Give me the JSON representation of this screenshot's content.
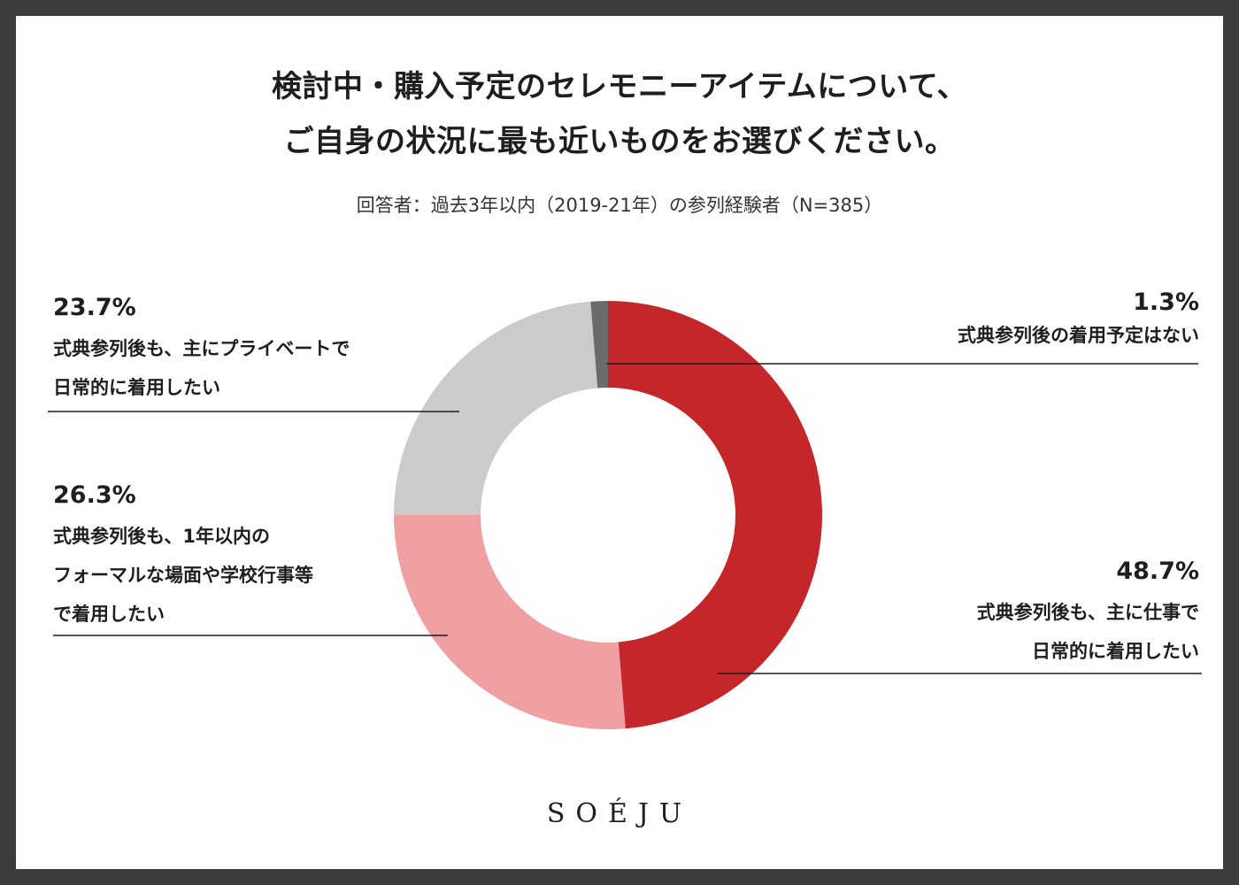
{
  "title": {
    "line1": "検討中・購入予定のセレモニーアイテムについて、",
    "line2": "ご自身の状況に最も近いものをお選びください。"
  },
  "subtitle": "回答者：過去3年以内（2019-21年）の参列経験者（N=385）",
  "brand": "SOÉJU",
  "colors": {
    "work": "#c4262a",
    "formal": "#f0a0a2",
    "private": "#cbcbcb",
    "none": "#6b6b6b",
    "leader": "#1e1e1e"
  },
  "chart_data": {
    "type": "pie",
    "donut": true,
    "unit": "%",
    "slices": [
      {
        "key": "work",
        "value": 48.7,
        "pct_label": "48.7%",
        "lines": [
          "式典参列後も、主に仕事で",
          "日常的に着用したい"
        ]
      },
      {
        "key": "formal",
        "value": 26.3,
        "pct_label": "26.3%",
        "lines": [
          "式典参列後も、1年以内の",
          "フォーマルな場面や学校行事等",
          "で着用したい"
        ]
      },
      {
        "key": "private",
        "value": 23.7,
        "pct_label": "23.7%",
        "lines": [
          "式典参列後も、主にプライベートで",
          "日常的に着用したい"
        ]
      },
      {
        "key": "none",
        "value": 1.3,
        "pct_label": "1.3%",
        "lines": [
          "式典参列後の着用予定はない"
        ]
      }
    ]
  }
}
